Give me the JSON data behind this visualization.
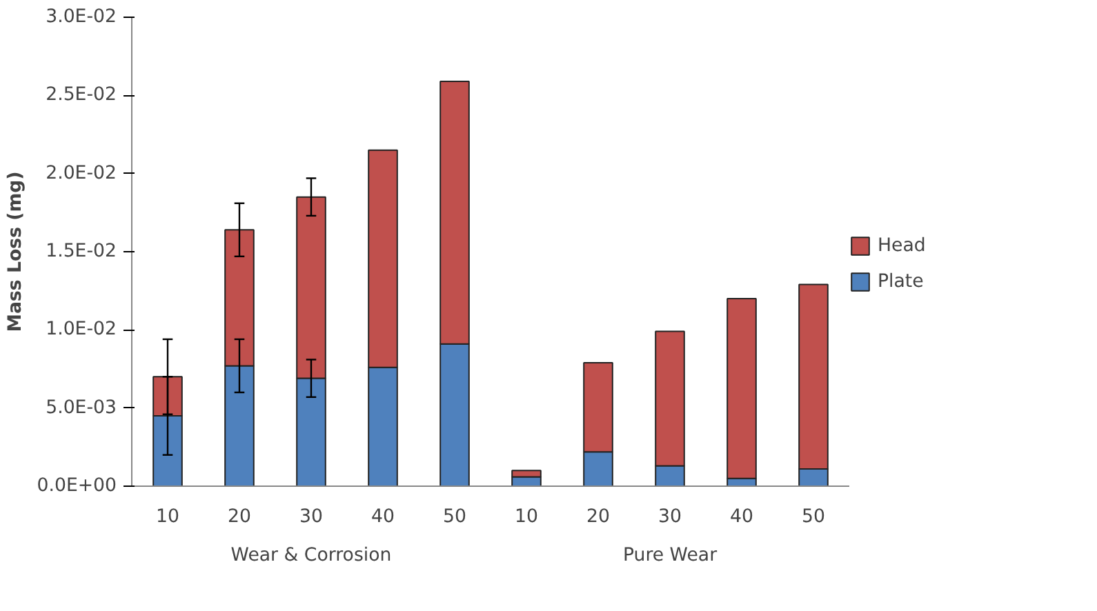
{
  "chart_data": {
    "type": "bar",
    "stacked": true,
    "ylabel": "Mass Loss (mg)",
    "categories": [
      "10",
      "20",
      "30",
      "40",
      "50",
      "10",
      "20",
      "30",
      "40",
      "50"
    ],
    "annotations": [
      "Wear & Corrosion",
      "Pure Wear"
    ],
    "series": [
      {
        "name": "Plate",
        "color": "#4f81bd",
        "values": [
          0.0045,
          0.0077,
          0.0069,
          0.0076,
          0.0091,
          0.0006,
          0.0022,
          0.0013,
          0.0005,
          0.0011
        ],
        "errors": [
          0.0025,
          0.0017,
          0.0012,
          null,
          null,
          null,
          null,
          null,
          null,
          null
        ]
      },
      {
        "name": "Head",
        "color": "#c0504d",
        "values": [
          0.0025,
          0.0087,
          0.0116,
          0.0139,
          0.0168,
          0.0004,
          0.0057,
          0.0086,
          0.0115,
          0.0118
        ],
        "errors": [
          0.0024,
          0.0017,
          0.0012,
          null,
          null,
          null,
          null,
          null,
          null,
          null
        ]
      }
    ],
    "ylim": [
      0,
      0.03
    ],
    "yticks": [
      {
        "value": 0,
        "label": "0.0E+00"
      },
      {
        "value": 0.005,
        "label": "5.0E-03"
      },
      {
        "value": 0.01,
        "label": "1.0E-02"
      },
      {
        "value": 0.015,
        "label": "1.5E-02"
      },
      {
        "value": 0.02,
        "label": "2.0E-02"
      },
      {
        "value": 0.025,
        "label": "2.5E-02"
      },
      {
        "value": 0.03,
        "label": "3.0E-02"
      }
    ],
    "grid": false,
    "legend": "right"
  }
}
